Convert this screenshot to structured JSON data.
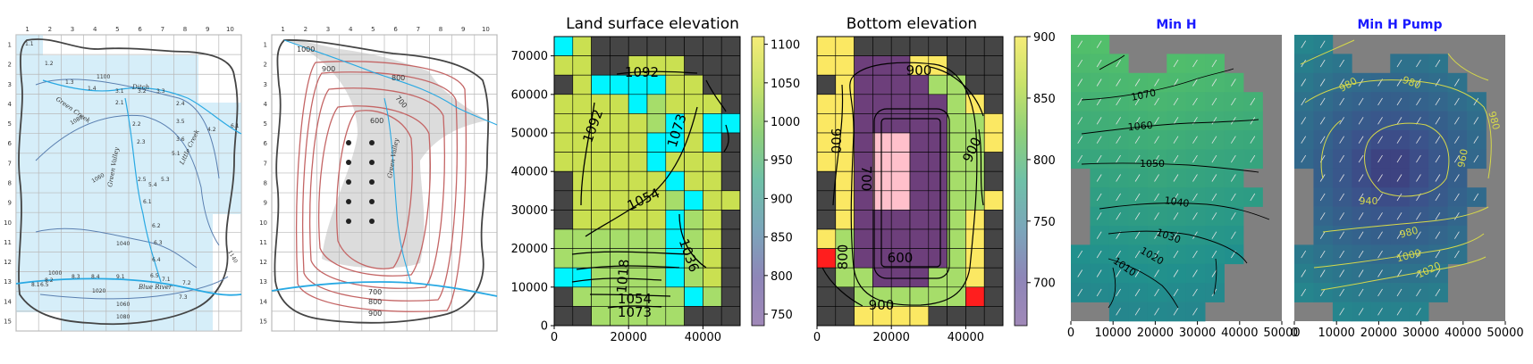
{
  "figure": {
    "panels": [
      {
        "id": "map_a",
        "kind": "hand-drawn contour map"
      },
      {
        "id": "map_b",
        "kind": "hand-drawn contour map"
      },
      {
        "id": "land_surface",
        "kind": "grid heatmap"
      },
      {
        "id": "bottom",
        "kind": "grid heatmap"
      },
      {
        "id": "min_h",
        "kind": "contour + quiver"
      },
      {
        "id": "min_h_pump",
        "kind": "contour + quiver"
      }
    ]
  },
  "map_a": {
    "col_labels": [
      "1",
      "2",
      "3",
      "4",
      "5",
      "6",
      "7",
      "8",
      "9",
      "10"
    ],
    "row_labels": [
      "1",
      "2",
      "3",
      "4",
      "5",
      "6",
      "7",
      "8",
      "9",
      "10",
      "11",
      "12",
      "13",
      "14",
      "15"
    ],
    "contour_labels": [
      "1100",
      "1080",
      "1060",
      "1040",
      "1020",
      "1060",
      "1080"
    ],
    "value_labels": [
      "1.1",
      "1.2",
      "1.3",
      "1.4",
      "3.1",
      "3.2",
      "3.3",
      "2.1",
      "2.4",
      "2.2",
      "3.5",
      "4.2",
      "6.1",
      "2.3",
      "3.6",
      "5.1",
      "2.5",
      "5.4",
      "5.3",
      "6.1",
      "6.2",
      "6.3",
      "6.4",
      "6.5",
      "7.1",
      "7.2",
      "7.3",
      "8.1",
      "8.2",
      "8.3",
      "8.4",
      "9.1",
      "1000",
      "6.5"
    ],
    "place_labels": [
      "Ditch",
      "Green Creek",
      "Green Valley",
      "Little Creek",
      "Blue River",
      "1140"
    ]
  },
  "map_b": {
    "col_labels": [
      "1",
      "2",
      "3",
      "4",
      "5",
      "6",
      "7",
      "8",
      "9",
      "10"
    ],
    "row_labels": [
      "1",
      "2",
      "3",
      "4",
      "5",
      "6",
      "7",
      "8",
      "9",
      "10",
      "11",
      "12",
      "13",
      "14",
      "15"
    ],
    "contour_labels": [
      "1000",
      "900",
      "800",
      "700",
      "600",
      "700",
      "800",
      "900"
    ],
    "place_labels": [
      "Green Valley"
    ]
  },
  "colors": {
    "dark": "#454545",
    "yellow": "#fbe863",
    "lightgreen": "#a6dd6a",
    "olive": "#cae051",
    "cyan": "#00f5ff",
    "red": "#ff1e1e",
    "pink": "#ffc0cb",
    "purple": "#6d3f7b",
    "gray": "#808080",
    "map_blue": "#d6eef9",
    "river": "#29a9e3",
    "contour_red": "#c46565",
    "title_blue": "#1a1aff"
  },
  "chart_data": [
    {
      "panel": "land_surface",
      "type": "heatmap",
      "title": "Land surface elevation",
      "x_ticks": [
        "0",
        "20000",
        "40000"
      ],
      "y_ticks": [
        "0",
        "10000",
        "20000",
        "30000",
        "40000",
        "50000",
        "60000",
        "70000"
      ],
      "xlim": [
        0,
        50000
      ],
      "ylim": [
        0,
        75000
      ],
      "nx": 10,
      "ny": 15,
      "grid_codes": [
        "CYDDDDDDDD",
        "YYDDYYYDDD",
        "DYCCCCYYDD",
        "YYYYCLYYYD",
        "YYYYYLCYCC",
        "YYYYYCCYCD",
        "YYYYYCYYYD",
        "DYYYYYCYYD",
        "DYYYYYLCYY",
        "DYYYYYCLYD",
        "LLLLLLCLYD",
        "LLLLLLCLYD",
        "CCLLLLCLYD",
        "DLLLLLLCLD",
        "DDLLLLLDDD"
      ],
      "code_map": {
        "D": "dark",
        "Y": "olive",
        "L": "lightgreen",
        "C": "cyan"
      },
      "colorbar": {
        "ticks": [
          "1100",
          "1050",
          "1000",
          "950",
          "900",
          "850",
          "800",
          "750"
        ],
        "range": [
          735,
          1110
        ]
      },
      "contour_labels": [
        "1092",
        "1092",
        "1073",
        "1054",
        "1036",
        "1018",
        "1054",
        "1073"
      ]
    },
    {
      "panel": "bottom",
      "type": "heatmap",
      "title": "Bottom elevation",
      "x_ticks": [
        "0",
        "20000",
        "40000"
      ],
      "xlim": [
        0,
        50000
      ],
      "ylim": [
        0,
        75000
      ],
      "nx": 10,
      "ny": 15,
      "grid_codes": [
        "YYDDDDDDDD",
        "YYPPPYYDDD",
        "DYPPPPGGDD",
        "YYPPPPPGYD",
        "YYPPPPPGGY",
        "YYPKKPPGGY",
        "YYPKKPPGGD",
        "DYPKKPPGGD",
        "DYPKKPPGGY",
        "DYPPPPPGYD",
        "YGPPPPPGYD",
        "RGPPPPPGYD",
        "DGGPPPGGYD",
        "DDGGGGGGRD",
        "DDYYYYDDDD"
      ],
      "code_map": {
        "D": "dark",
        "Y": "yellow",
        "G": "lightgreen",
        "P": "purple",
        "K": "pink",
        "R": "red"
      },
      "colorbar": {
        "ticks": [
          "900",
          "850",
          "800",
          "750",
          "700"
        ],
        "range": [
          665,
          900
        ]
      },
      "contour_labels": [
        "900",
        "900",
        "900",
        "700",
        "800",
        "600",
        "900"
      ]
    },
    {
      "panel": "min_h",
      "type": "heatmap",
      "title": "Min H",
      "x_ticks": [
        "0",
        "10000",
        "20000",
        "30000",
        "40000",
        "50000"
      ],
      "xlim": [
        0,
        50000
      ],
      "ylim": [
        0,
        70000
      ],
      "contour_labels": [
        "1070",
        "1060",
        "1050",
        "1040",
        "1030",
        "1020",
        "1010"
      ]
    },
    {
      "panel": "min_h_pump",
      "type": "heatmap",
      "title": "Min H Pump",
      "x_ticks": [
        "0",
        "10000",
        "20000",
        "30000",
        "40000",
        "50000"
      ],
      "xlim": [
        0,
        50000
      ],
      "ylim": [
        0,
        70000
      ],
      "contour_labels": [
        "980",
        "980",
        "980",
        "960",
        "940",
        "980",
        "1000",
        "1020"
      ]
    }
  ]
}
